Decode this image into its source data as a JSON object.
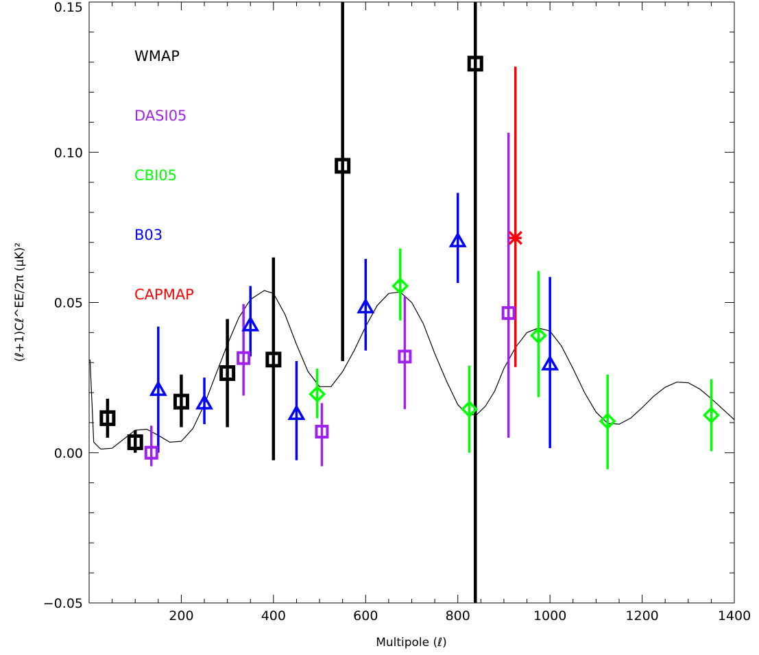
{
  "chart_data": {
    "type": "scatter",
    "xlabel": "Multipole (ℓ)",
    "ylabel": "(ℓ+1)Cℓ^EE/2π (μK)²",
    "xlim": [
      0,
      1400
    ],
    "ylim": [
      -0.05,
      0.15
    ],
    "x_ticks": [
      200,
      400,
      600,
      800,
      1000,
      1200,
      1400
    ],
    "x_tick_labels": [
      "200",
      "400",
      "600",
      "800",
      "1000",
      "1200",
      "1400"
    ],
    "y_ticks": [
      -0.05,
      0.0,
      0.05,
      0.1,
      0.15
    ],
    "y_tick_labels": [
      "−0.05",
      "0.00",
      "0.05",
      "0.10",
      "0.15"
    ],
    "legend_placement": "top-left",
    "series": [
      {
        "name": "WMAP",
        "color": "#000000",
        "marker": "square",
        "points": [
          {
            "x": 40,
            "y": 0.0115,
            "lo": 0.005,
            "hi": 0.018
          },
          {
            "x": 100,
            "y": 0.0035,
            "lo": 0.0,
            "hi": 0.0075
          },
          {
            "x": 200,
            "y": 0.017,
            "lo": 0.0085,
            "hi": 0.026
          },
          {
            "x": 300,
            "y": 0.0265,
            "lo": 0.0085,
            "hi": 0.0445
          },
          {
            "x": 400,
            "y": 0.031,
            "lo": -0.0025,
            "hi": 0.065
          },
          {
            "x": 550,
            "y": 0.0955,
            "lo": 0.0305,
            "hi": 0.16
          },
          {
            "x": 838,
            "y": 0.1295,
            "lo": -0.06,
            "hi": 0.16
          }
        ]
      },
      {
        "name": "DASI05",
        "color": "#a020f0",
        "marker": "square",
        "points": [
          {
            "x": 135,
            "y": 0.0,
            "lo": -0.0045,
            "hi": 0.009
          },
          {
            "x": 335,
            "y": 0.0315,
            "lo": 0.019,
            "hi": 0.0495
          },
          {
            "x": 505,
            "y": 0.007,
            "lo": -0.0045,
            "hi": 0.0165
          },
          {
            "x": 685,
            "y": 0.032,
            "lo": 0.0145,
            "hi": 0.052
          },
          {
            "x": 910,
            "y": 0.0465,
            "lo": 0.005,
            "hi": 0.1065
          }
        ]
      },
      {
        "name": "CBI05",
        "color": "#00ff00",
        "marker": "diamond",
        "points": [
          {
            "x": 495,
            "y": 0.0195,
            "lo": 0.0115,
            "hi": 0.028
          },
          {
            "x": 675,
            "y": 0.0555,
            "lo": 0.044,
            "hi": 0.068
          },
          {
            "x": 825,
            "y": 0.0145,
            "lo": 0.0,
            "hi": 0.029
          },
          {
            "x": 975,
            "y": 0.039,
            "lo": 0.0185,
            "hi": 0.0605
          },
          {
            "x": 1125,
            "y": 0.0105,
            "lo": -0.0055,
            "hi": 0.026
          },
          {
            "x": 1350,
            "y": 0.0125,
            "lo": 0.0005,
            "hi": 0.0245
          }
        ]
      },
      {
        "name": "B03",
        "color": "#0000ff",
        "marker": "triangle",
        "points": [
          {
            "x": 150,
            "y": 0.021,
            "lo": 0.0,
            "hi": 0.042
          },
          {
            "x": 250,
            "y": 0.0165,
            "lo": 0.0095,
            "hi": 0.025
          },
          {
            "x": 350,
            "y": 0.0425,
            "lo": 0.032,
            "hi": 0.0555
          },
          {
            "x": 450,
            "y": 0.013,
            "lo": -0.0025,
            "hi": 0.0305
          },
          {
            "x": 600,
            "y": 0.0485,
            "lo": 0.034,
            "hi": 0.0645
          },
          {
            "x": 800,
            "y": 0.0705,
            "lo": 0.0565,
            "hi": 0.0865
          },
          {
            "x": 1000,
            "y": 0.0295,
            "lo": 0.0015,
            "hi": 0.0585
          }
        ]
      },
      {
        "name": "CAPMAP",
        "color": "#ff0000",
        "marker": "asterisk",
        "points": [
          {
            "x": 925,
            "y": 0.0715,
            "lo": 0.0285,
            "hi": 0.1285
          }
        ]
      }
    ],
    "model_curve": {
      "color": "#000000",
      "points": [
        [
          2,
          0.031
        ],
        [
          10,
          0.0035
        ],
        [
          25,
          0.0012
        ],
        [
          50,
          0.0015
        ],
        [
          75,
          0.0045
        ],
        [
          100,
          0.0075
        ],
        [
          125,
          0.0078
        ],
        [
          150,
          0.0058
        ],
        [
          175,
          0.0035
        ],
        [
          200,
          0.0038
        ],
        [
          225,
          0.008
        ],
        [
          250,
          0.016
        ],
        [
          275,
          0.026
        ],
        [
          300,
          0.036
        ],
        [
          325,
          0.045
        ],
        [
          350,
          0.051
        ],
        [
          380,
          0.054
        ],
        [
          400,
          0.053
        ],
        [
          425,
          0.046
        ],
        [
          450,
          0.036
        ],
        [
          475,
          0.027
        ],
        [
          500,
          0.022
        ],
        [
          525,
          0.022
        ],
        [
          550,
          0.027
        ],
        [
          575,
          0.034
        ],
        [
          600,
          0.042
        ],
        [
          625,
          0.049
        ],
        [
          650,
          0.053
        ],
        [
          675,
          0.0535
        ],
        [
          700,
          0.05
        ],
        [
          725,
          0.043
        ],
        [
          750,
          0.033
        ],
        [
          775,
          0.024
        ],
        [
          800,
          0.016
        ],
        [
          820,
          0.0128
        ],
        [
          840,
          0.0125
        ],
        [
          860,
          0.0155
        ],
        [
          880,
          0.0205
        ],
        [
          900,
          0.028
        ],
        [
          925,
          0.035
        ],
        [
          950,
          0.04
        ],
        [
          975,
          0.0415
        ],
        [
          1000,
          0.0405
        ],
        [
          1025,
          0.0355
        ],
        [
          1050,
          0.028
        ],
        [
          1075,
          0.02
        ],
        [
          1100,
          0.0135
        ],
        [
          1125,
          0.0098
        ],
        [
          1150,
          0.0095
        ],
        [
          1175,
          0.0115
        ],
        [
          1200,
          0.015
        ],
        [
          1225,
          0.0188
        ],
        [
          1250,
          0.0218
        ],
        [
          1275,
          0.0235
        ],
        [
          1300,
          0.0233
        ],
        [
          1325,
          0.0212
        ],
        [
          1350,
          0.018
        ],
        [
          1375,
          0.0145
        ],
        [
          1400,
          0.011
        ]
      ]
    }
  }
}
